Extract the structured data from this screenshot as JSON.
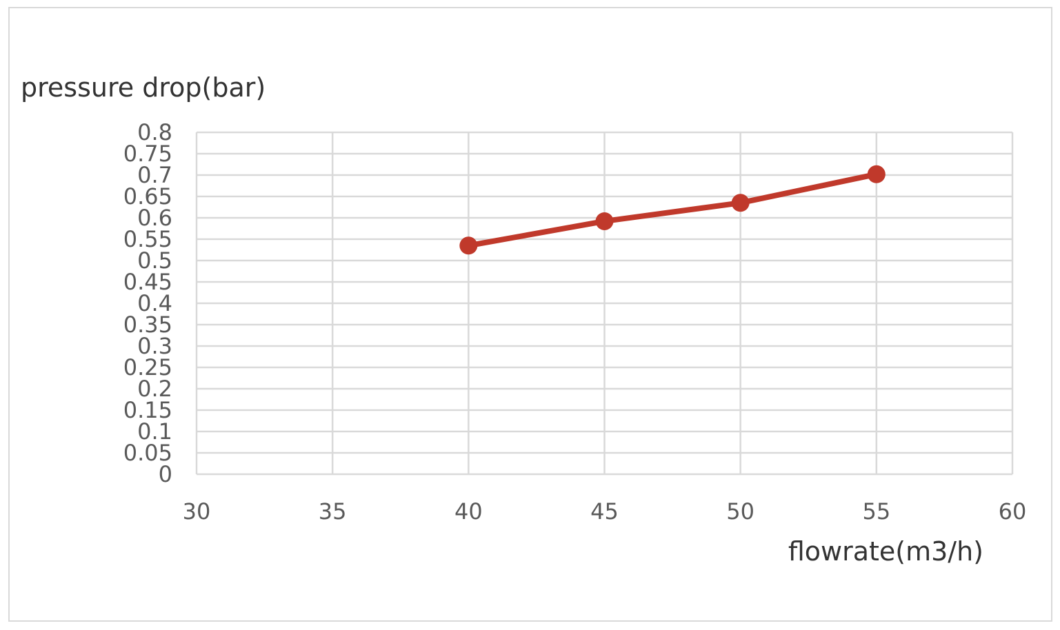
{
  "chart_data": {
    "type": "line",
    "title": "",
    "xlabel": "flowrate(m3/h)",
    "ylabel": "pressure drop(bar)",
    "xlim": [
      30,
      60
    ],
    "ylim": [
      0,
      0.8
    ],
    "x_ticks": [
      "30",
      "35",
      "40",
      "45",
      "50",
      "55",
      "60"
    ],
    "y_ticks": [
      "0",
      "0.05",
      "0.1",
      "0.15",
      "0.2",
      "0.25",
      "0.3",
      "0.35",
      "0.4",
      "0.45",
      "0.5",
      "0.55",
      "0.6",
      "0.65",
      "0.7",
      "0.75",
      "0.8"
    ],
    "grid": true,
    "legend": "none",
    "series": [
      {
        "color": "#c0392b",
        "x": [
          40,
          45,
          50,
          55
        ],
        "y": [
          0.535,
          0.592,
          0.635,
          0.702
        ]
      }
    ]
  }
}
